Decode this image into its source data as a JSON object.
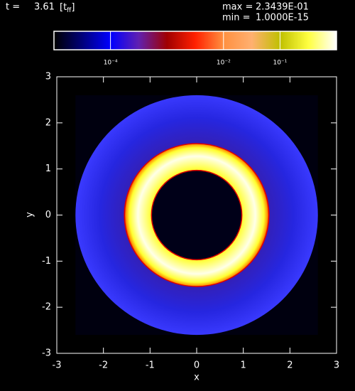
{
  "chart_data": {
    "type": "density-map",
    "time_label": "t =",
    "time": "3.61",
    "time_unit": [
      "[t",
      "ff",
      "]"
    ],
    "max_label": "max =",
    "max": "2.3439E-01",
    "min_label": "min =",
    "min": "1.0000E-15",
    "colorbar": {
      "colors": [
        "#000000",
        "#00007a",
        "#0000ff",
        "#6020b0",
        "#a00000",
        "#ff2000",
        "#ff9040",
        "#ffb070",
        "#c0c000",
        "#ffff40",
        "#ffffff"
      ],
      "clim": [
        -5,
        0
      ],
      "log": true,
      "ticks": [
        {
          "value": -4,
          "label": "10⁻⁴"
        },
        {
          "value": -2,
          "label": "10⁻²"
        },
        {
          "value": -1,
          "label": "10⁻¹"
        }
      ]
    },
    "xlabel": "x",
    "ylabel": "y",
    "xlim": [
      -3,
      3
    ],
    "ylim": [
      -3,
      3
    ],
    "xticks": [
      -3,
      -2,
      -1,
      0,
      1,
      2,
      3
    ],
    "yticks": [
      -3,
      -2,
      -1,
      0,
      1,
      2,
      3
    ],
    "domain_half_width": 2.6,
    "disk_outer_radius": 2.6,
    "ring_outer_radius": 1.55,
    "hole_radius": 0.97,
    "background_color": "#00000f",
    "disk_colors": [
      "#3a3aff",
      "#2626e0",
      "#3320b8"
    ],
    "ring_colors": [
      "#ffff30",
      "#ffffe8",
      "#ffff30",
      "#ff9000",
      "#e00000"
    ],
    "hole_color": "#000018"
  }
}
